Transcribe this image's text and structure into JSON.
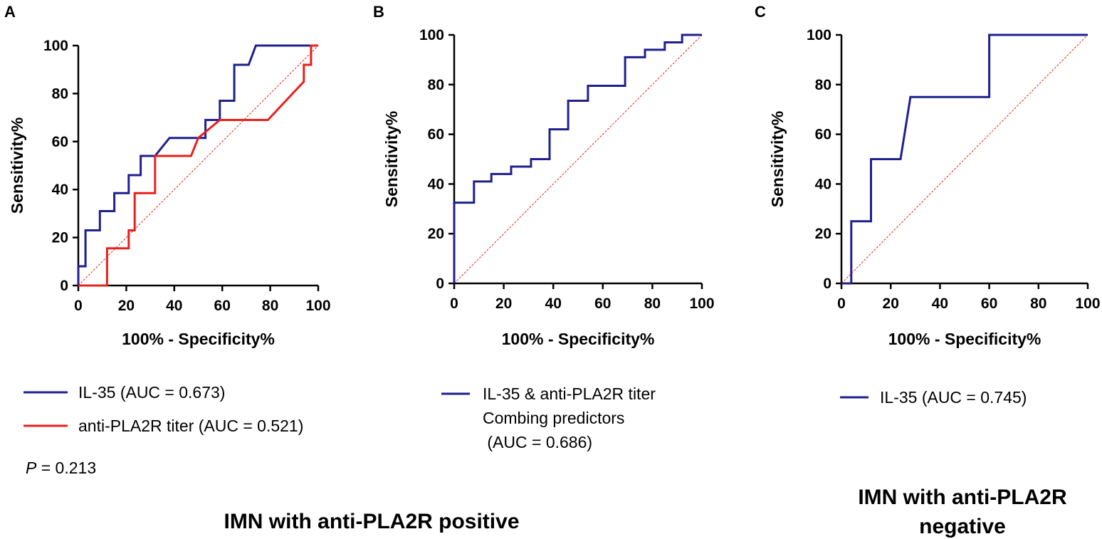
{
  "chart_data": [
    {
      "type": "line",
      "panel": "A",
      "xlabel": "100% - Specificity%",
      "ylabel": "Sensitivity%",
      "xlim": [
        0,
        100
      ],
      "ylim": [
        0,
        100
      ],
      "xticks": [
        "0",
        "20",
        "40",
        "60",
        "80",
        "100"
      ],
      "yticks": [
        "0",
        "20",
        "40",
        "60",
        "80",
        "100"
      ],
      "series": [
        {
          "name": "IL-35 (AUC = 0.673)",
          "color": "#1f1f8f",
          "x": [
            0,
            0,
            3,
            3,
            9,
            9,
            15,
            15,
            21,
            21,
            26,
            26,
            32,
            38,
            53,
            53,
            59,
            59,
            65,
            65,
            71,
            74,
            100
          ],
          "y": [
            0,
            8,
            8,
            23,
            23,
            31,
            31,
            38.5,
            38.5,
            46,
            46,
            54,
            54,
            61.5,
            61.5,
            69,
            69,
            77,
            77,
            92,
            92,
            100,
            100
          ]
        },
        {
          "name": "anti-PLA2R titer (AUC = 0.521)",
          "color": "#e8201c",
          "x": [
            0,
            12,
            12,
            21,
            21,
            23.5,
            23.5,
            32,
            32,
            47,
            50,
            50,
            59,
            79,
            94,
            94,
            97,
            97,
            100
          ],
          "y": [
            0,
            0,
            15.5,
            15.5,
            23,
            23,
            38.5,
            38.5,
            54,
            54,
            61.5,
            61.5,
            69,
            69,
            85,
            92,
            92,
            100,
            100
          ]
        },
        {
          "name": "reference",
          "color": "#e8201c",
          "dashed": true,
          "x": [
            0,
            100
          ],
          "y": [
            0,
            100
          ]
        }
      ]
    },
    {
      "type": "line",
      "panel": "B",
      "xlabel": "100% - Specificity%",
      "ylabel": "Sensitivity%",
      "xlim": [
        0,
        100
      ],
      "ylim": [
        0,
        100
      ],
      "xticks": [
        "0",
        "20",
        "40",
        "60",
        "80",
        "100"
      ],
      "yticks": [
        "0",
        "20",
        "40",
        "60",
        "80",
        "100"
      ],
      "series": [
        {
          "name": "IL-35 & anti-PLA2R titer Combing predictors (AUC = 0.686)",
          "color": "#1f1f8f",
          "x": [
            0,
            0,
            8,
            8,
            15,
            15,
            23,
            23,
            31,
            31,
            38.5,
            38.5,
            46,
            46,
            54,
            54,
            69,
            69,
            77,
            77,
            85,
            85,
            92,
            92,
            100
          ],
          "y": [
            0,
            32.5,
            32.5,
            41,
            41,
            44,
            44,
            47,
            47,
            50,
            50,
            62,
            62,
            73.5,
            73.5,
            79.5,
            79.5,
            91,
            91,
            94,
            94,
            97,
            97,
            100,
            100
          ]
        },
        {
          "name": "reference",
          "color": "#e8201c",
          "dashed": true,
          "x": [
            0,
            100
          ],
          "y": [
            0,
            100
          ]
        }
      ]
    },
    {
      "type": "line",
      "panel": "C",
      "xlabel": "100% - Specificity%",
      "ylabel": "Sensitivity%",
      "xlim": [
        0,
        100
      ],
      "ylim": [
        0,
        100
      ],
      "xticks": [
        "0",
        "20",
        "40",
        "60",
        "80",
        "100"
      ],
      "yticks": [
        "0",
        "20",
        "40",
        "60",
        "80",
        "100"
      ],
      "series": [
        {
          "name": "IL-35 (AUC = 0.745)",
          "color": "#1f1f8f",
          "x": [
            0,
            4,
            4,
            12,
            12,
            24,
            28,
            60,
            60,
            100
          ],
          "y": [
            0,
            0,
            25,
            25,
            50,
            50,
            75,
            75,
            100,
            100
          ]
        },
        {
          "name": "reference",
          "color": "#e8201c",
          "dashed": true,
          "x": [
            0,
            100
          ],
          "y": [
            0,
            100
          ]
        }
      ]
    }
  ],
  "legend": {
    "a": {
      "line1": "IL-35 (AUC = 0.673)",
      "line2": "anti-PLA2R titer (AUC = 0.521)",
      "p_symbol": "P",
      "p_value": " = 0.213"
    },
    "b": {
      "line1": "IL-35 & anti-PLA2R titer",
      "line2": "Combing predictors",
      "line3": " (AUC = 0.686)"
    },
    "c": {
      "line1": "IL-35 (AUC = 0.745)"
    }
  },
  "captions": {
    "positive": "IMN with anti-PLA2R positive",
    "negative_line1": "IMN with anti-PLA2R",
    "negative_line2": "negative"
  },
  "colors": {
    "blue": "#1f1f8f",
    "red": "#e8201c",
    "axis": "#000000"
  }
}
